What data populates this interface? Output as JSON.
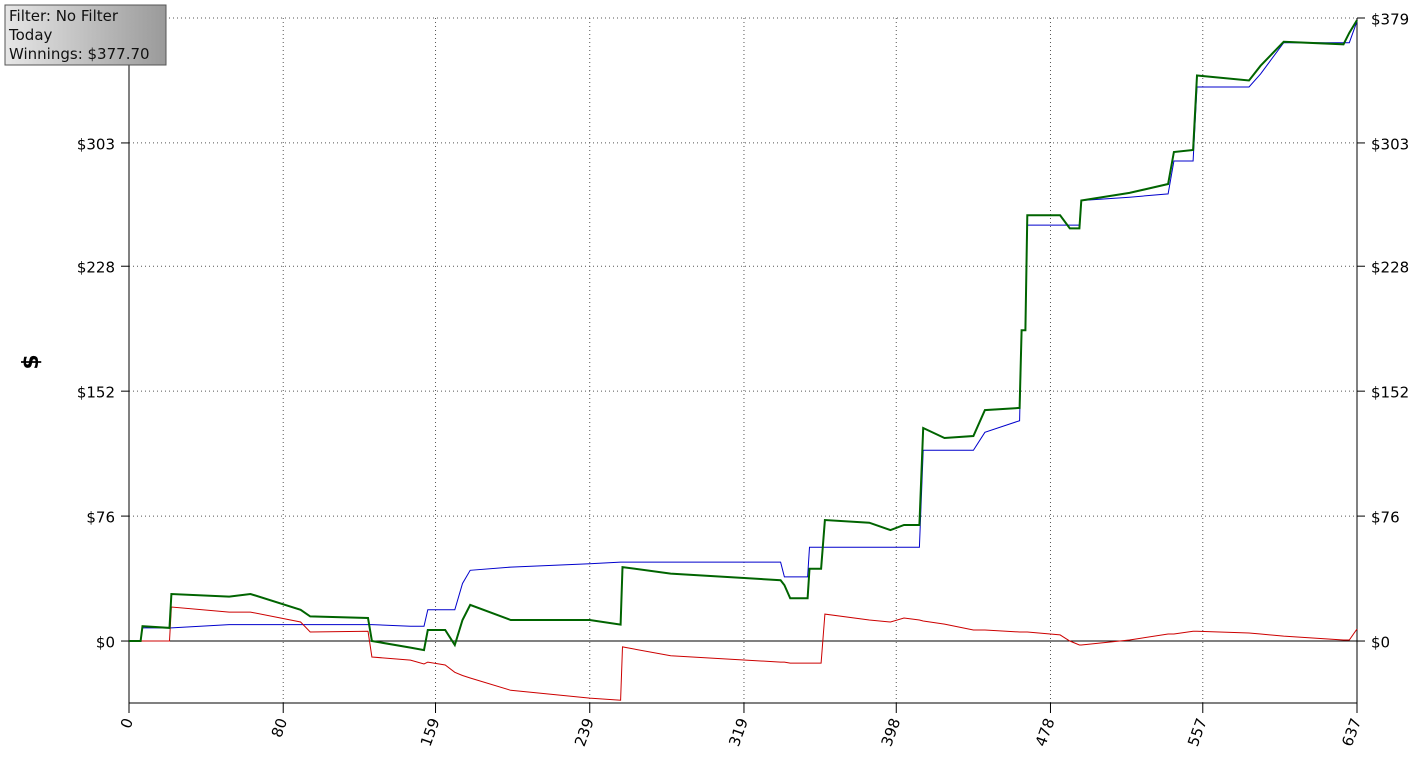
{
  "info": {
    "lines": [
      "Filter: No Filter",
      "Today",
      "Winnings: $377.70"
    ]
  },
  "chart_data": {
    "type": "line",
    "ylabel": "$",
    "x": [
      0,
      6,
      7,
      21,
      22,
      52,
      63,
      89,
      94,
      124,
      126,
      146,
      153,
      155,
      164,
      169,
      173,
      177,
      198,
      239,
      255,
      256,
      281,
      338,
      340,
      343,
      352,
      353,
      359,
      361,
      384,
      395,
      402,
      410,
      412,
      423,
      438,
      444,
      462,
      463,
      465,
      466,
      483,
      488,
      493,
      494,
      519,
      539,
      542,
      552,
      554,
      581,
      587,
      599,
      630,
      633,
      637
    ],
    "series": [
      {
        "color": "#0000cc",
        "values": [
          0,
          0,
          8,
          8,
          8,
          10,
          10,
          10,
          10,
          10,
          10,
          9,
          9,
          19,
          19,
          19,
          35,
          43,
          45,
          47,
          48,
          48,
          48,
          48,
          39,
          39,
          39,
          57,
          57,
          57,
          57,
          57,
          57,
          57,
          116,
          116,
          116,
          127,
          134,
          189,
          189,
          253,
          253,
          253,
          253,
          268,
          270,
          272,
          292,
          292,
          337,
          337,
          345,
          364,
          364,
          364,
          377
        ]
      },
      {
        "color": "#cc0000",
        "values": [
          0,
          0,
          0,
          0,
          20.7,
          17.6,
          17.6,
          11.6,
          5.5,
          6,
          -9.7,
          -11.6,
          -14,
          -12.8,
          -14.6,
          -19,
          -21,
          -22.5,
          -30,
          -34.7,
          -36,
          -3.6,
          -9,
          -12.8,
          -12.8,
          -13.4,
          -13.4,
          -13.4,
          -13.4,
          16.4,
          12.8,
          11.6,
          14,
          12.8,
          12.2,
          10.3,
          6.7,
          6.7,
          5.5,
          5.5,
          5.5,
          5.5,
          3.7,
          0,
          -2.4,
          -2.4,
          0.6,
          4.3,
          4.3,
          6,
          6,
          4.9,
          4.3,
          3,
          0.6,
          0.6,
          7.3
        ]
      },
      {
        "color": "#006400",
        "values": [
          0,
          0,
          9,
          8,
          28.6,
          27,
          28.6,
          19,
          15,
          14,
          0,
          -4,
          -5.5,
          6.7,
          6.7,
          -2.4,
          12.8,
          22,
          12.8,
          12.8,
          10,
          45,
          41,
          37,
          34,
          26,
          26,
          44,
          44,
          73.6,
          72,
          67.5,
          70.6,
          70.6,
          129.6,
          123.5,
          124.7,
          140.5,
          141.8,
          189,
          189,
          259,
          259,
          251,
          251,
          268,
          272.6,
          278,
          297.5,
          298.7,
          344,
          341,
          350,
          364.5,
          363,
          370,
          377.7
        ]
      }
    ],
    "xlim": [
      0,
      637
    ],
    "xticks": [
      0,
      80,
      159,
      239,
      319,
      398,
      478,
      557,
      637
    ],
    "ylim": [
      -37.7,
      379
    ],
    "yticks": [
      {
        "value": 0,
        "label": "$0"
      },
      {
        "value": 76,
        "label": "$76"
      },
      {
        "value": 152,
        "label": "$152"
      },
      {
        "value": 228,
        "label": "$228"
      },
      {
        "value": 303,
        "label": "$303"
      },
      {
        "value": 379,
        "label": "$379"
      }
    ],
    "grid": true
  }
}
